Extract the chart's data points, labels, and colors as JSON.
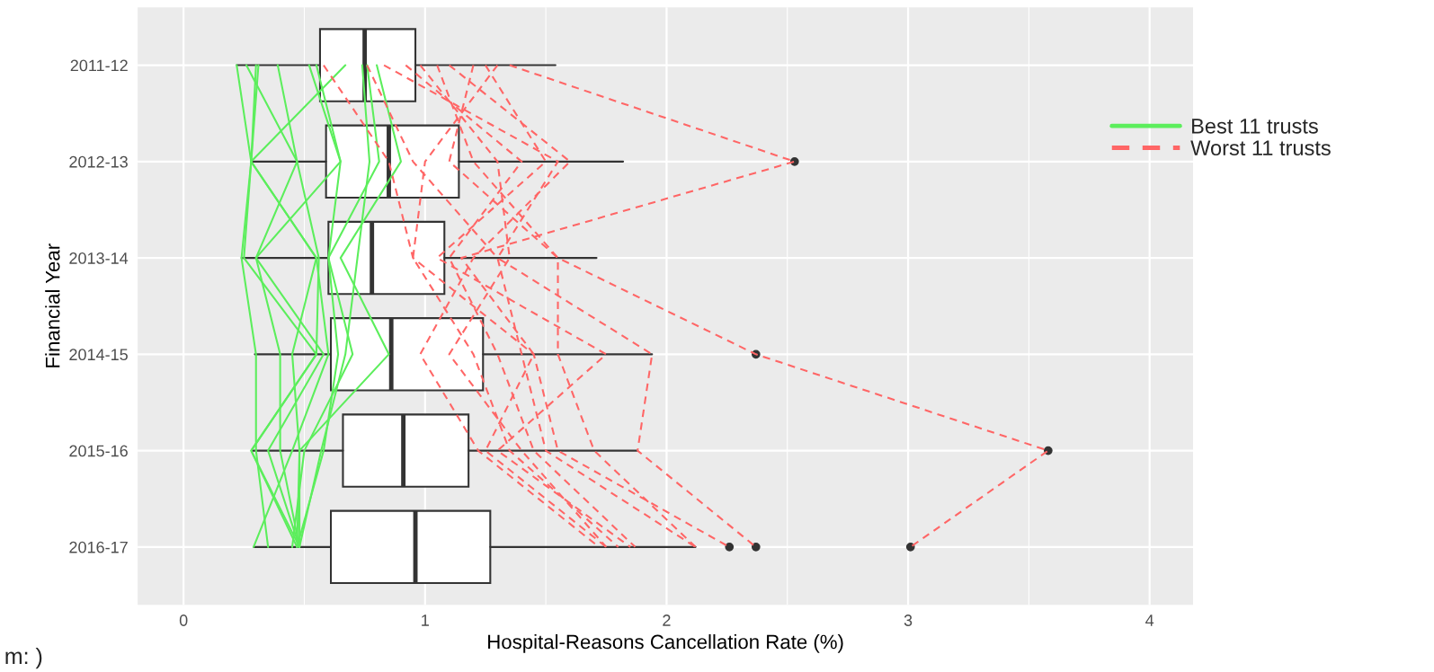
{
  "chart_data": {
    "type": "box",
    "orientation": "horizontal",
    "xlabel": "Hospital-Reasons Cancellation Rate (%)",
    "ylabel": "Financial Year",
    "categories": [
      "2011-12",
      "2012-13",
      "2013-14",
      "2014-15",
      "2015-16",
      "2016-17"
    ],
    "boxes": [
      {
        "low": 0.22,
        "q1": 0.565,
        "median": 0.75,
        "q3": 0.96,
        "high": 1.54
      },
      {
        "low": 0.28,
        "q1": 0.59,
        "median": 0.85,
        "q3": 1.14,
        "high": 1.82,
        "outliers": [
          2.53
        ]
      },
      {
        "low": 0.24,
        "q1": 0.6,
        "median": 0.78,
        "q3": 1.08,
        "high": 1.71
      },
      {
        "low": 0.295,
        "q1": 0.61,
        "median": 0.86,
        "q3": 1.24,
        "high": 1.94,
        "outliers": [
          2.37
        ]
      },
      {
        "low": 0.285,
        "q1": 0.66,
        "median": 0.91,
        "q3": 1.18,
        "high": 1.88,
        "outliers": [
          3.58
        ]
      },
      {
        "low": 0.29,
        "q1": 0.61,
        "median": 0.96,
        "q3": 1.27,
        "high": 2.12,
        "outliers": [
          2.26,
          2.37,
          3.01
        ]
      }
    ],
    "series": [
      {
        "type": "line",
        "name": "Best 11 trusts",
        "color": "#5cee5c",
        "line_style": "solid",
        "values": [
          0.22,
          0.28,
          0.25,
          0.55,
          0.28,
          0.48
        ]
      },
      {
        "type": "line",
        "color": "#5cee5c",
        "line_style": "solid",
        "values": [
          0.26,
          0.47,
          0.3,
          0.4,
          0.4,
          0.48
        ]
      },
      {
        "type": "line",
        "color": "#5cee5c",
        "line_style": "solid",
        "values": [
          0.3,
          0.28,
          0.55,
          0.6,
          0.45,
          0.29
        ]
      },
      {
        "type": "line",
        "color": "#5cee5c",
        "line_style": "solid",
        "values": [
          0.31,
          0.28,
          0.24,
          0.3,
          0.3,
          0.35
        ]
      },
      {
        "type": "line",
        "color": "#5cee5c",
        "line_style": "solid",
        "values": [
          0.39,
          0.47,
          0.56,
          0.55,
          0.28,
          0.47
        ]
      },
      {
        "type": "line",
        "color": "#5cee5c",
        "line_style": "solid",
        "values": [
          0.52,
          0.65,
          0.6,
          0.64,
          0.58,
          0.47
        ]
      },
      {
        "type": "line",
        "color": "#5cee5c",
        "line_style": "solid",
        "values": [
          0.67,
          0.28,
          0.55,
          0.45,
          0.48,
          0.48
        ]
      },
      {
        "type": "line",
        "color": "#5cee5c",
        "line_style": "solid",
        "values": [
          0.74,
          0.77,
          0.72,
          0.67,
          0.57,
          0.48
        ]
      },
      {
        "type": "line",
        "color": "#5cee5c",
        "line_style": "solid",
        "values": [
          0.76,
          0.81,
          0.6,
          0.7,
          0.5,
          0.45
        ]
      },
      {
        "type": "line",
        "color": "#5cee5c",
        "line_style": "solid",
        "values": [
          0.8,
          0.9,
          0.65,
          0.85,
          0.48,
          0.47
        ]
      },
      {
        "type": "line",
        "color": "#5cee5c",
        "line_style": "solid",
        "values": [
          0.55,
          0.65,
          0.3,
          0.58,
          0.35,
          0.48
        ]
      },
      {
        "type": "line",
        "name": "Worst 11 trusts",
        "color": "#ff6666",
        "line_style": "dashed",
        "values": [
          1.35,
          2.53,
          1.15,
          1.45,
          1.25,
          1.75
        ]
      },
      {
        "type": "line",
        "color": "#ff6666",
        "line_style": "dashed",
        "values": [
          1.05,
          1.2,
          1.55,
          2.37,
          3.58,
          3.01
        ]
      },
      {
        "type": "line",
        "color": "#ff6666",
        "line_style": "dashed",
        "values": [
          0.58,
          0.85,
          0.95,
          1.45,
          1.55,
          2.26
        ]
      },
      {
        "type": "line",
        "color": "#ff6666",
        "line_style": "dashed",
        "values": [
          0.83,
          1.55,
          1.3,
          1.94,
          1.88,
          2.37
        ]
      },
      {
        "type": "line",
        "color": "#ff6666",
        "line_style": "dashed",
        "values": [
          0.92,
          1.4,
          1.1,
          1.3,
          1.45,
          1.87
        ]
      },
      {
        "type": "line",
        "color": "#ff6666",
        "line_style": "dashed",
        "values": [
          1.1,
          1.6,
          1.2,
          0.98,
          1.22,
          1.72
        ]
      },
      {
        "type": "line",
        "color": "#ff6666",
        "line_style": "dashed",
        "values": [
          1.2,
          1.1,
          1.55,
          1.55,
          1.7,
          2.12
        ]
      },
      {
        "type": "line",
        "color": "#ff6666",
        "line_style": "dashed",
        "values": [
          1.3,
          1.0,
          0.95,
          1.2,
          1.35,
          1.8
        ]
      },
      {
        "type": "line",
        "color": "#ff6666",
        "line_style": "dashed",
        "values": [
          0.98,
          1.3,
          1.35,
          1.1,
          1.4,
          1.75
        ]
      },
      {
        "type": "line",
        "color": "#ff6666",
        "line_style": "dashed",
        "values": [
          1.25,
          1.5,
          1.05,
          1.75,
          1.3,
          1.85
        ]
      },
      {
        "type": "line",
        "color": "#ff6666",
        "line_style": "dashed",
        "values": [
          0.76,
          0.95,
          1.3,
          1.4,
          1.5,
          2.12
        ]
      }
    ],
    "xlim": [
      -0.19,
      4.18
    ],
    "xticks": [
      0,
      1,
      2,
      3,
      4
    ],
    "grid": true,
    "legend": "right",
    "annotations": [
      "m: )"
    ]
  }
}
